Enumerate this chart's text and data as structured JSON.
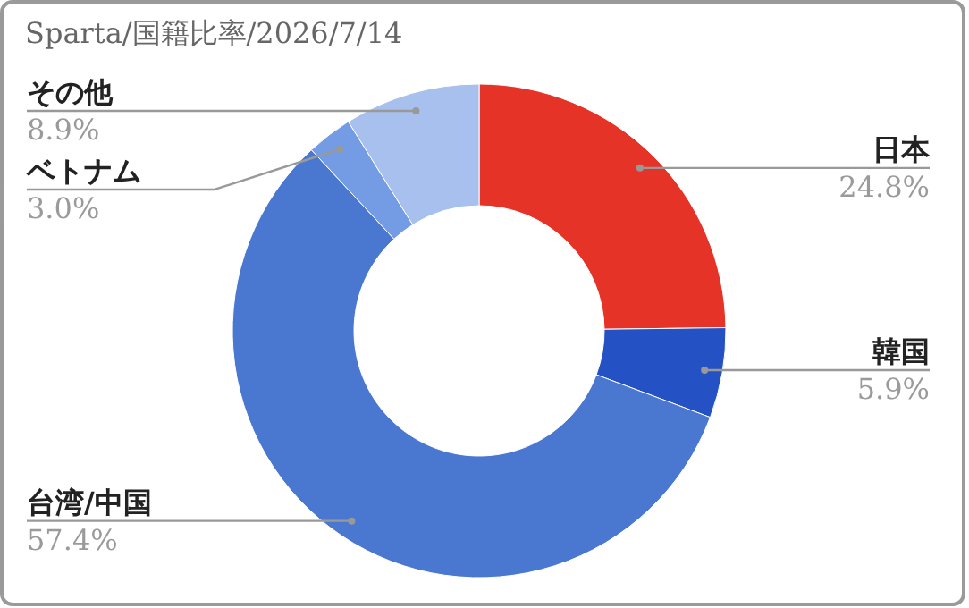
{
  "chart_data": {
    "type": "donut",
    "title": "Sparta/国籍比率/2026/7/14",
    "categories": [
      "日本",
      "韓国",
      "台湾/中国",
      "ベトナム",
      "その他"
    ],
    "values": [
      24.8,
      5.9,
      57.4,
      3.0,
      8.9
    ],
    "value_labels": [
      "24.8%",
      "5.9%",
      "57.4%",
      "3.0%",
      "8.9%"
    ],
    "colors": [
      "#e63327",
      "#2452c5",
      "#4a78d1",
      "#739ce4",
      "#a8c0ee"
    ]
  }
}
